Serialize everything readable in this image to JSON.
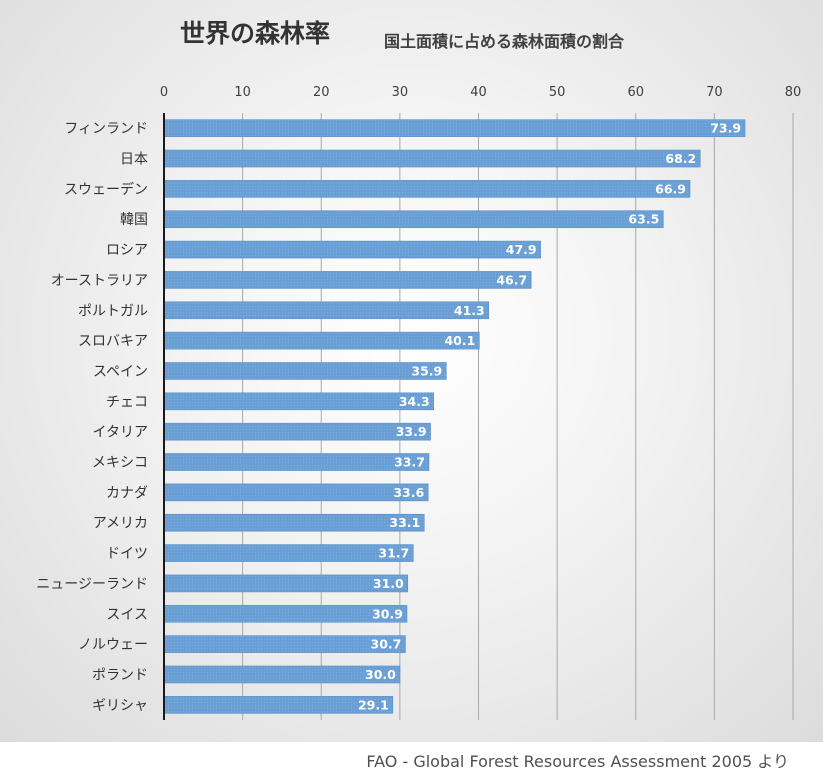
{
  "chart_data": {
    "type": "bar",
    "orientation": "horizontal",
    "title": "世界の森林率",
    "subtitle": "国土面積に占める森林面積の割合",
    "categories": [
      "フィンランド",
      "日本",
      "スウェーデン",
      "韓国",
      "ロシア",
      "オーストラリア",
      "ポルトガル",
      "スロバキア",
      "スペイン",
      "チェコ",
      "イタリア",
      "メキシコ",
      "カナダ",
      "アメリカ",
      "ドイツ",
      "ニュージーランド",
      "スイス",
      "ノルウェー",
      "ポランド",
      "ギリシャ"
    ],
    "values": [
      73.9,
      68.2,
      66.9,
      63.5,
      47.9,
      46.7,
      41.3,
      40.1,
      35.9,
      34.3,
      33.9,
      33.7,
      33.6,
      33.1,
      31.7,
      31.0,
      30.9,
      30.7,
      30.0,
      29.1
    ],
    "data_labels": [
      "73.9",
      "68.2",
      "66.9",
      "63.5",
      "47.9",
      "46.7",
      "41.3",
      "40.1",
      "35.9",
      "34.3",
      "33.9",
      "33.7",
      "33.6",
      "33.1",
      "31.7",
      "31.0",
      "30.9",
      "30.7",
      "30.0",
      "29.1"
    ],
    "xlim": [
      0,
      80
    ],
    "x_ticks": [
      0,
      10,
      20,
      30,
      40,
      50,
      60,
      70,
      80
    ],
    "x_tick_labels": [
      "0",
      "10",
      "20",
      "30",
      "40",
      "50",
      "60",
      "70",
      "80"
    ],
    "x_axis_position": "top",
    "grid": true,
    "legend": "none",
    "bar_color": "#6a9fd6"
  },
  "source": "FAO - Global Forest Resources Assessment 2005 より"
}
